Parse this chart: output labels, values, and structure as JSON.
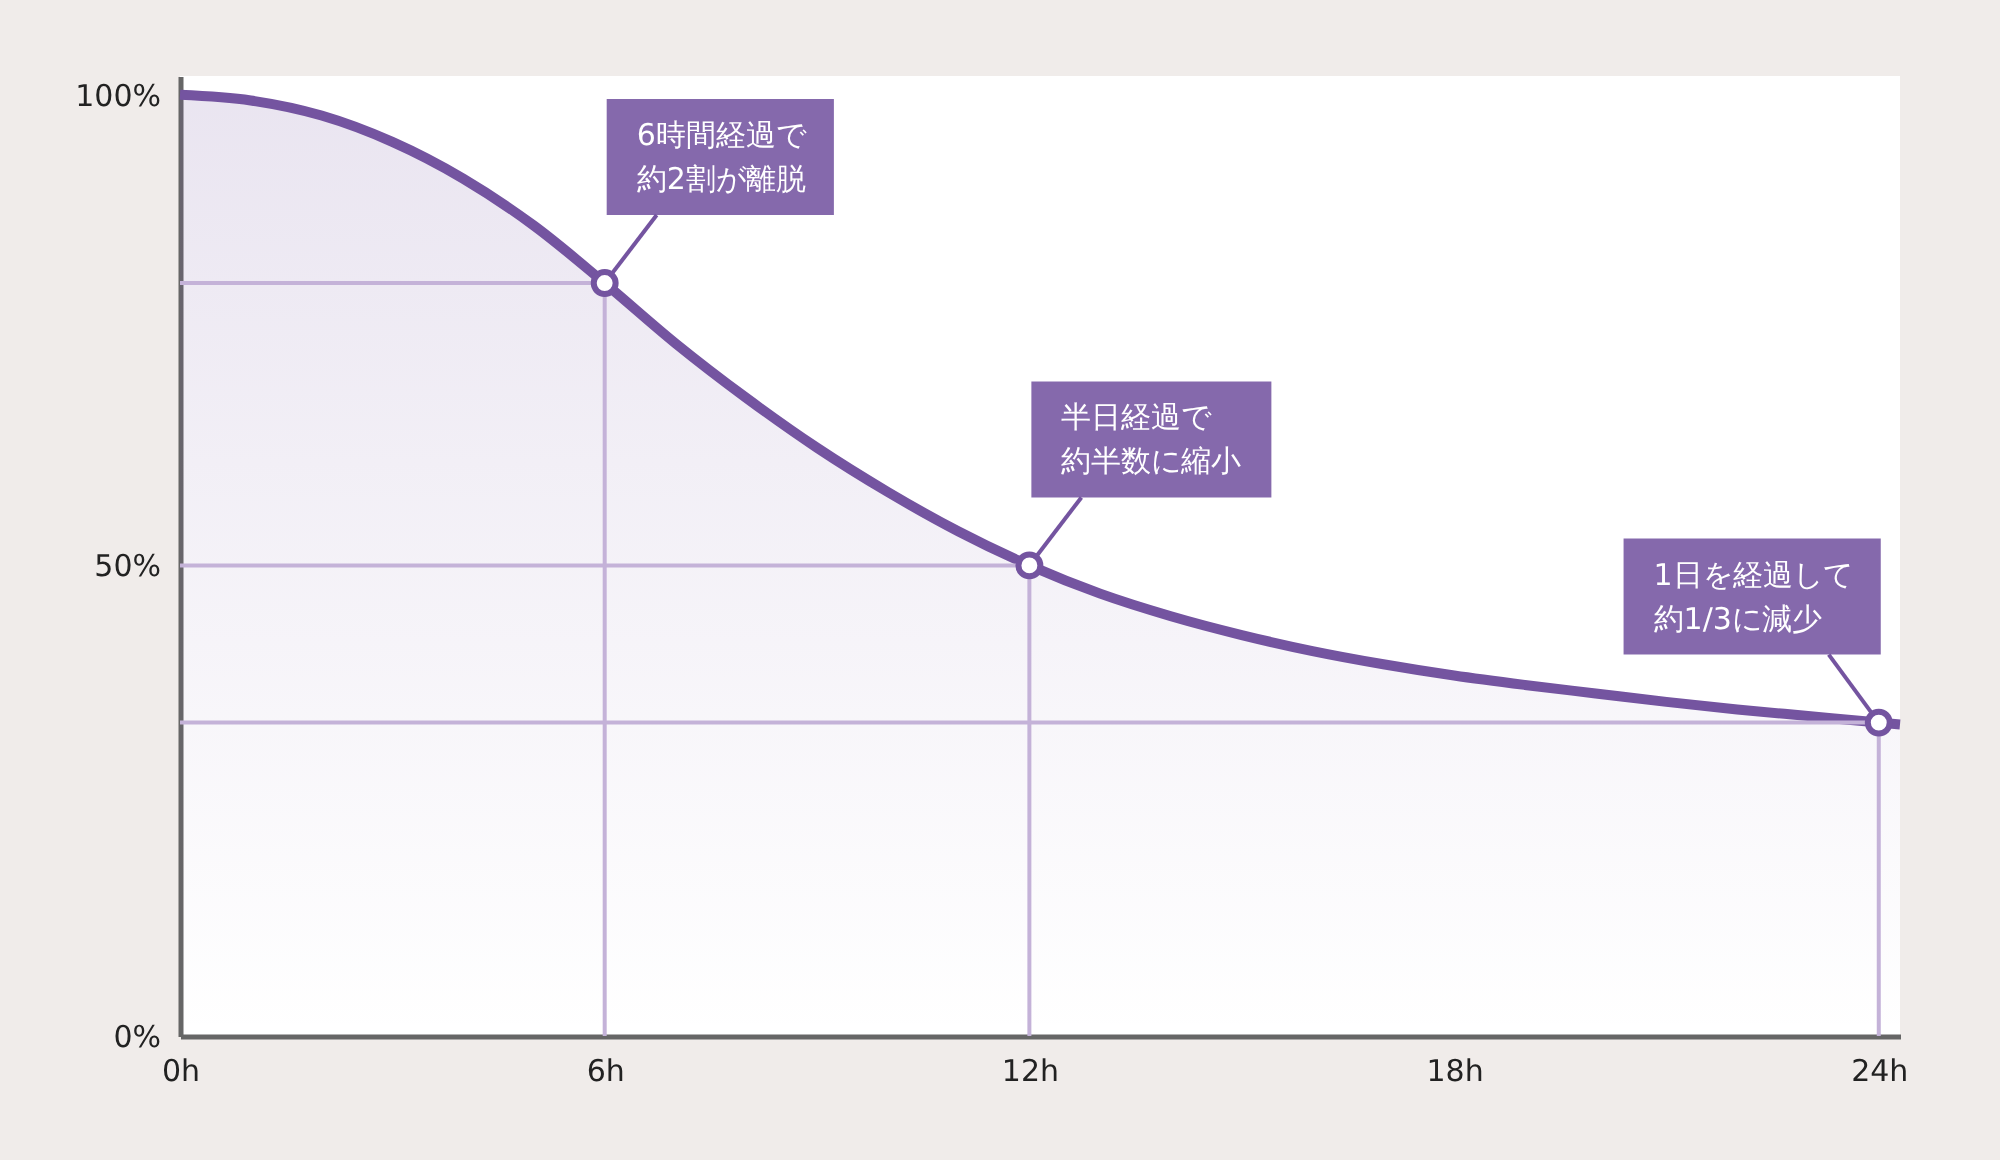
{
  "chart_data": {
    "type": "area",
    "x": [
      0,
      1,
      2,
      3,
      4,
      5,
      6,
      7,
      8,
      9,
      10,
      11,
      12,
      13,
      14,
      15,
      16,
      17,
      18,
      19,
      20,
      21,
      22,
      23,
      24,
      24.3
    ],
    "series": [
      {
        "color": "#7454a0",
        "values": [
          100,
          99.4,
          97.8,
          95,
          91.1,
          86.1,
          80,
          73.6,
          67.8,
          62.5,
          57.8,
          53.6,
          50,
          47,
          44.6,
          42.6,
          40.9,
          39.5,
          38.3,
          37.3,
          36.4,
          35.5,
          34.7,
          34,
          33.3,
          33.1
        ]
      },
      {
        "type": "line",
        "color": "#c4b2d8",
        "x": [
          0,
          6,
          6
        ],
        "values": [
          80,
          80,
          0
        ]
      },
      {
        "type": "line",
        "color": "#c4b2d8",
        "x": [
          0,
          12,
          12
        ],
        "values": [
          50,
          50,
          0
        ]
      },
      {
        "type": "line",
        "color": "#c4b2d8",
        "x": [
          0,
          24,
          24
        ],
        "values": [
          33.3,
          33.3,
          0
        ]
      }
    ],
    "xlim": [
      0,
      24.3
    ],
    "ylim": [
      0,
      102
    ],
    "xticks": [
      {
        "value": 0,
        "label": "0h"
      },
      {
        "value": 6,
        "label": "6h"
      },
      {
        "value": 12,
        "label": "12h"
      },
      {
        "value": 18,
        "label": "18h"
      },
      {
        "value": 24,
        "label": "24h"
      }
    ],
    "yticks": [
      {
        "value": 0,
        "label": "0%"
      },
      {
        "value": 50,
        "label": "50%"
      },
      {
        "value": 100,
        "label": "100%"
      }
    ],
    "grid": false,
    "marker": "none",
    "line_style": "solid",
    "annotations": [
      {
        "text": "6時間経過で約2割が離脱",
        "x": 6,
        "y": 80
      },
      {
        "text": "半日経過で約半数に縮小",
        "x": 12,
        "y": 50
      },
      {
        "text": "1日を経過して約1/3に減少",
        "x": 24,
        "y": 33.3
      }
    ]
  }
}
